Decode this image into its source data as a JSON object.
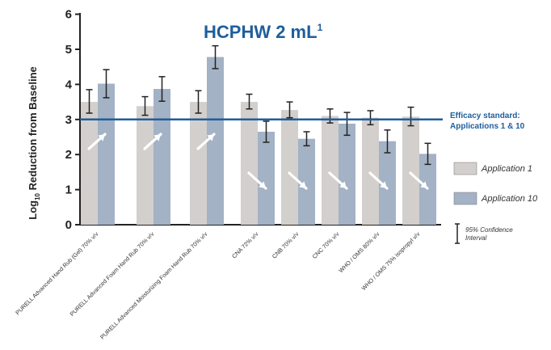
{
  "chart_data": {
    "type": "bar",
    "title_main": "HCPHW 2 mL",
    "title_sup": "1",
    "ylabel_pre": "Log",
    "ylabel_sub": "10",
    "ylabel_post": " Reduction from Baseline",
    "yticks": [
      "0",
      "1",
      "2",
      "3",
      "4",
      "5",
      "6"
    ],
    "ylim": [
      0,
      6
    ],
    "categories": [
      "PURELL Advanced Hand Rub (Gel) 70% v/v",
      "PURELL Advanced Foam Hand Rub 70% v/v",
      "PURELL Advanced Moisturizing Foam Hand Rub 70% v/v",
      "CNA 72% v/v",
      "CNB 70% v/v",
      "CNC 70% v/v",
      "WHO / OMS 80% v/v",
      "WHO / OMS 75% isopropyl v/v"
    ],
    "series": [
      {
        "name": "Application 1",
        "color": "#d3cfcc",
        "values": [
          3.5,
          3.38,
          3.5,
          3.5,
          3.27,
          3.1,
          3.05,
          3.08
        ],
        "ci_low": [
          3.18,
          3.12,
          3.18,
          3.3,
          3.05,
          2.9,
          2.85,
          2.82
        ],
        "ci_high": [
          3.85,
          3.65,
          3.82,
          3.72,
          3.5,
          3.3,
          3.25,
          3.35
        ]
      },
      {
        "name": "Application 10",
        "color": "#a3b2c5",
        "values": [
          4.02,
          3.87,
          4.78,
          2.65,
          2.45,
          2.88,
          2.38,
          2.02
        ],
        "ci_low": [
          3.62,
          3.52,
          4.45,
          2.35,
          2.25,
          2.55,
          2.05,
          1.72
        ],
        "ci_high": [
          4.42,
          4.22,
          5.1,
          2.95,
          2.65,
          3.2,
          2.7,
          2.32
        ]
      }
    ],
    "reference_line": {
      "value": 3,
      "label_line1": "Efficacy standard:",
      "label_line2": "Applications 1 & 10",
      "color": "#1f5e9c"
    },
    "trend_arrows": [
      "up",
      "up",
      "up",
      "down",
      "down",
      "down",
      "down",
      "down"
    ],
    "legend": {
      "position": "right",
      "items": [
        "Application 1",
        "Application 10"
      ],
      "ci_label_line1": "95% Confidence",
      "ci_label_line2": "Interval"
    },
    "grid": false
  }
}
